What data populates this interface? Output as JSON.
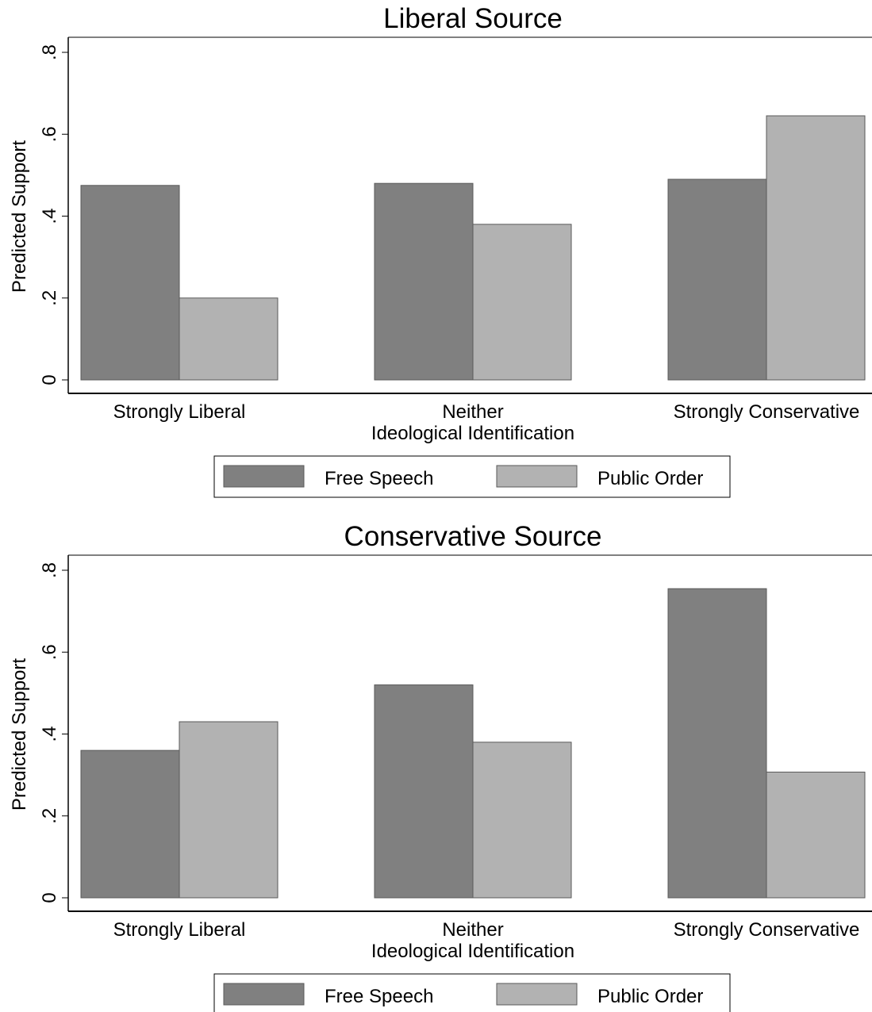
{
  "chart_data": [
    {
      "type": "bar",
      "title": "Liberal Source",
      "ylabel": "Predicted Support",
      "xlabel": "Ideological Identification",
      "ylim": [
        0,
        0.8
      ],
      "yticks": [
        0,
        0.2,
        0.4,
        0.6,
        0.8
      ],
      "yticklabels": [
        "0",
        ".2",
        ".4",
        ".6",
        ".8"
      ],
      "categories": [
        "Strongly Liberal",
        "Neither",
        "Strongly Conservative"
      ],
      "series": [
        {
          "name": "Free Speech",
          "values": [
            0.475,
            0.48,
            0.49
          ],
          "color": "#808080"
        },
        {
          "name": "Public Order",
          "values": [
            0.2,
            0.38,
            0.645
          ],
          "color": "#b2b2b2"
        }
      ],
      "grid": false,
      "legend_position": "bottom"
    },
    {
      "type": "bar",
      "title": "Conservative Source",
      "ylabel": "Predicted Support",
      "xlabel": "Ideological Identification",
      "ylim": [
        0,
        0.8
      ],
      "yticks": [
        0,
        0.2,
        0.4,
        0.6,
        0.8
      ],
      "yticklabels": [
        "0",
        ".2",
        ".4",
        ".6",
        ".8"
      ],
      "categories": [
        "Strongly Liberal",
        "Neither",
        "Strongly Conservative"
      ],
      "series": [
        {
          "name": "Free Speech",
          "values": [
            0.36,
            0.52,
            0.755
          ],
          "color": "#808080"
        },
        {
          "name": "Public Order",
          "values": [
            0.43,
            0.38,
            0.307
          ],
          "color": "#b2b2b2"
        }
      ],
      "grid": false,
      "legend_position": "bottom"
    }
  ]
}
